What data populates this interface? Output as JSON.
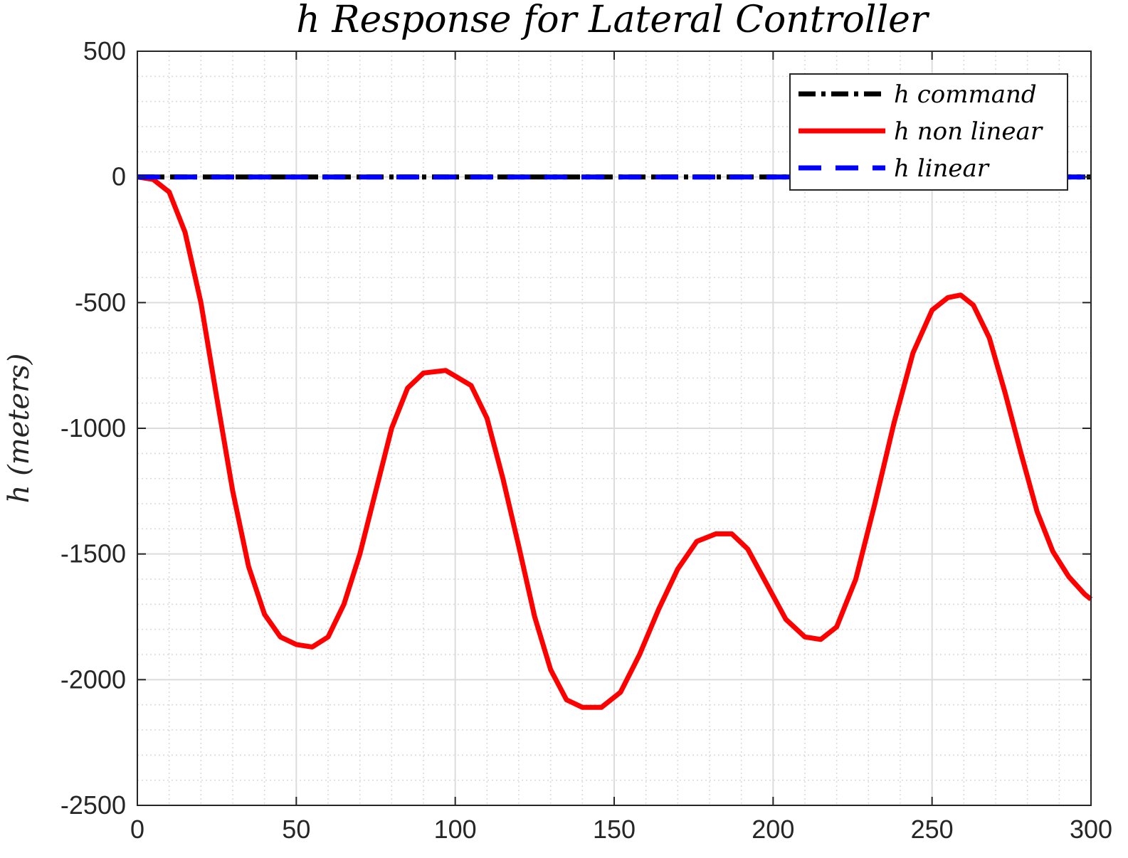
{
  "chart_data": {
    "type": "line",
    "title": "h Response for Lateral Controller",
    "xlabel": "",
    "ylabel": "h (meters)",
    "xlim": [
      0,
      300
    ],
    "ylim": [
      -2500,
      500
    ],
    "xticks": [
      0,
      50,
      100,
      150,
      200,
      250,
      300
    ],
    "yticks": [
      500,
      0,
      -500,
      -1000,
      -1500,
      -2000,
      -2500
    ],
    "xtick_labels": [
      "0",
      "50",
      "100",
      "150",
      "200",
      "250",
      "300"
    ],
    "ytick_labels": [
      "500",
      "0",
      "-500",
      "-1000",
      "-1500",
      "-2000",
      "-2500"
    ],
    "grid": true,
    "minor_grid": true,
    "legend_position": "top-right",
    "series": [
      {
        "name": "h command",
        "color": "#000000",
        "style": "dash-dot",
        "x": [
          0,
          300
        ],
        "y": [
          0,
          0
        ]
      },
      {
        "name": "h non linear",
        "color": "#ff0000",
        "style": "solid",
        "x": [
          0,
          5,
          10,
          15,
          20,
          25,
          30,
          35,
          40,
          45,
          50,
          55,
          60,
          65,
          70,
          75,
          80,
          85,
          90,
          97,
          105,
          110,
          115,
          120,
          125,
          130,
          135,
          140,
          146,
          152,
          158,
          164,
          170,
          176,
          182,
          187,
          192,
          198,
          204,
          210,
          215,
          220,
          226,
          232,
          238,
          244,
          250,
          255,
          259,
          263,
          268,
          273,
          278,
          283,
          288,
          293,
          298,
          300
        ],
        "y": [
          0,
          -10,
          -60,
          -220,
          -500,
          -880,
          -1250,
          -1550,
          -1740,
          -1830,
          -1860,
          -1870,
          -1830,
          -1700,
          -1500,
          -1250,
          -1000,
          -840,
          -780,
          -770,
          -830,
          -960,
          -1200,
          -1470,
          -1750,
          -1960,
          -2080,
          -2110,
          -2110,
          -2050,
          -1900,
          -1720,
          -1560,
          -1450,
          -1420,
          -1420,
          -1480,
          -1620,
          -1760,
          -1830,
          -1840,
          -1790,
          -1600,
          -1300,
          -980,
          -700,
          -530,
          -480,
          -470,
          -510,
          -640,
          -860,
          -1100,
          -1330,
          -1490,
          -1590,
          -1660,
          -1680
        ]
      },
      {
        "name": "h linear",
        "color": "#0000ff",
        "style": "dashed",
        "x": [
          0,
          300
        ],
        "y": [
          0,
          0
        ]
      }
    ]
  }
}
